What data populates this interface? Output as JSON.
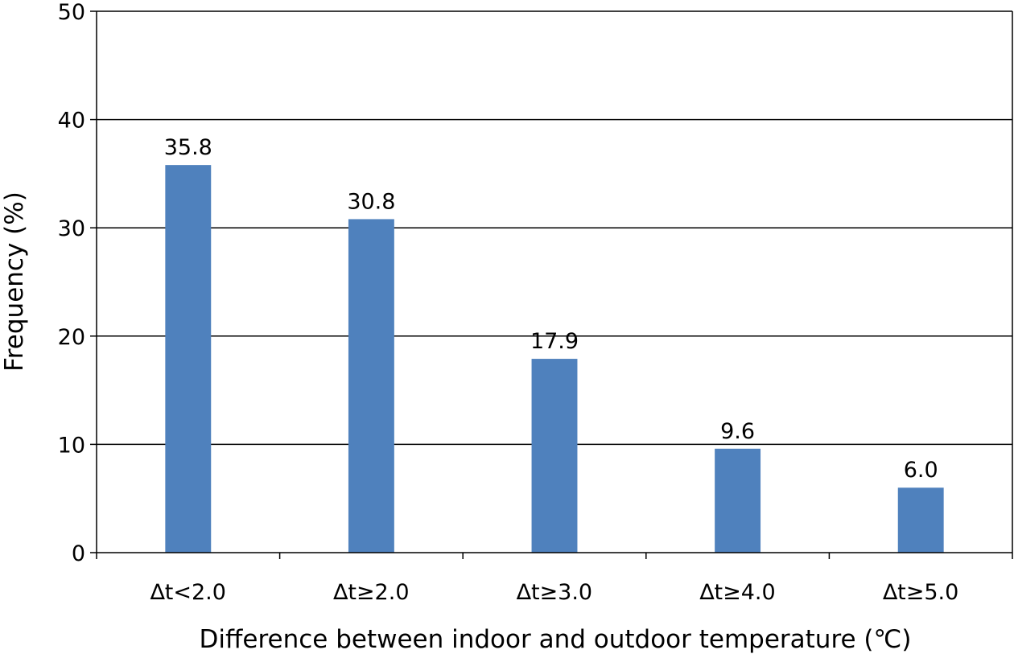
{
  "chart_data": {
    "type": "bar",
    "title": "",
    "xlabel": "Difference between indoor and outdoor temperature (℃)",
    "ylabel": "Frequency (%)",
    "categories": [
      "∆t<2.0",
      "∆t≥2.0",
      "∆t≥3.0",
      "∆t≥4.0",
      "∆t≥5.0"
    ],
    "values": [
      35.8,
      30.8,
      17.9,
      9.6,
      6.0
    ],
    "value_labels": [
      "35.8",
      "30.8",
      "17.9",
      "9.6",
      "6.0"
    ],
    "ylim": [
      0,
      50
    ],
    "yticks": [
      0,
      10,
      20,
      30,
      40,
      50
    ],
    "grid": true,
    "legend": "none",
    "bar_color": "#4F81BD"
  }
}
